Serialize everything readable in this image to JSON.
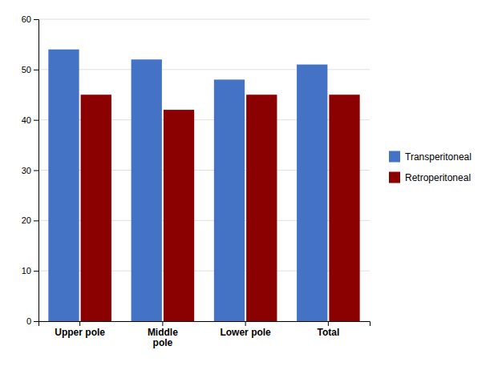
{
  "chart_data": {
    "type": "bar",
    "categories": [
      "Upper pole",
      "Middle\npole",
      "Lower pole",
      "Total"
    ],
    "series": [
      {
        "name": "Transperitoneal",
        "color": "#4472C4",
        "values": [
          54,
          52,
          48,
          51
        ]
      },
      {
        "name": "Retroperitoneal",
        "color": "#8B0000",
        "values": [
          45,
          42,
          45,
          45
        ]
      }
    ],
    "ylim": [
      0,
      60
    ],
    "yticks": [
      0,
      10,
      20,
      30,
      40,
      50,
      60
    ],
    "grid": true,
    "legend": "right"
  }
}
